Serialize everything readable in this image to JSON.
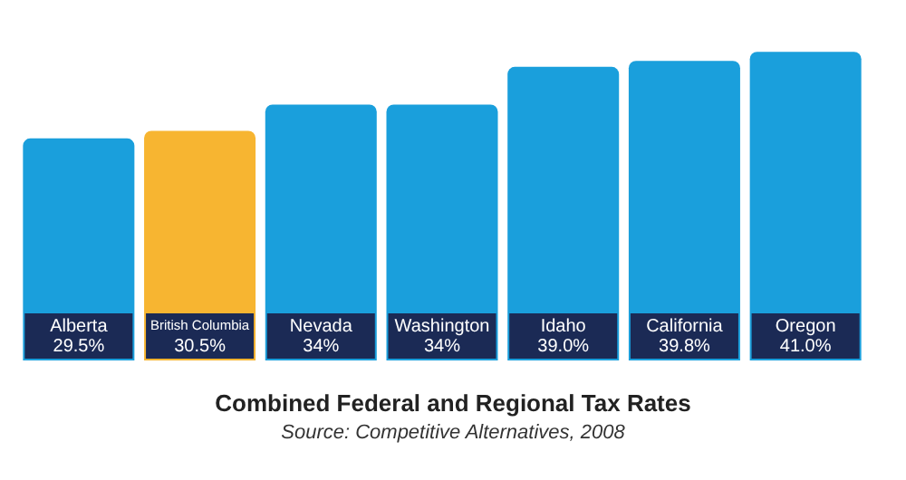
{
  "chart_data": {
    "type": "bar",
    "title": "Combined Federal and Regional Tax Rates",
    "annotations": [
      "Source: Competitive Alternatives, 2008"
    ],
    "categories": [
      "Alberta",
      "British Columbia",
      "Nevada",
      "Washington",
      "Idaho",
      "California",
      "Oregon"
    ],
    "values": [
      29.5,
      30.5,
      34,
      34,
      39.0,
      39.8,
      41.0
    ],
    "value_labels": [
      "29.5%",
      "30.5%",
      "34%",
      "34%",
      "39.0%",
      "39.8%",
      "41.0%"
    ],
    "colors": [
      "#1a9fdc",
      "#f7b531",
      "#1a9fdc",
      "#1a9fdc",
      "#1a9fdc",
      "#1a9fdc",
      "#1a9fdc"
    ],
    "legend": false
  }
}
